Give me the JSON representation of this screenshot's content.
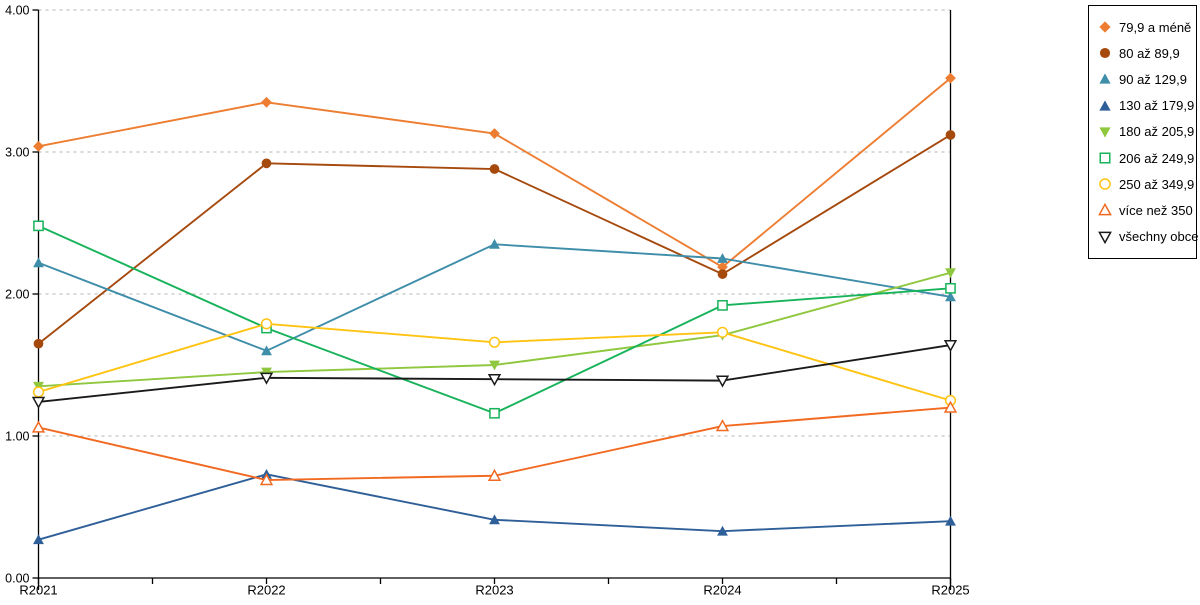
{
  "chart_data": {
    "type": "line",
    "title": "",
    "xlabel": "",
    "ylabel": "",
    "categories": [
      "R2021",
      "R2022",
      "R2023",
      "R2024",
      "R2025"
    ],
    "y_ticks": [
      "0.00",
      "1.00",
      "2.00",
      "3.00",
      "4.00"
    ],
    "ylim": [
      0,
      4
    ],
    "grid": "horizontal dotted gridlines at 1.00, 2.00, 3.00, 4.00",
    "legend_position": "outside-top-right",
    "axis_color": "#000000",
    "gridline_color": "#B3B3B3",
    "series": [
      {
        "name": "79,9 a méně",
        "color": "#ED7D31",
        "marker": "diamond",
        "fill": "filled",
        "values": [
          3.04,
          3.35,
          3.13,
          2.19,
          3.52
        ]
      },
      {
        "name": "80 až 89,9",
        "color": "#A5490D",
        "marker": "circle",
        "fill": "filled",
        "values": [
          1.65,
          2.92,
          2.88,
          2.14,
          3.12
        ]
      },
      {
        "name": "90 až 129,9",
        "color": "#3E8DA9",
        "marker": "triangle-up",
        "fill": "filled",
        "values": [
          2.22,
          1.6,
          2.35,
          2.25,
          1.98
        ]
      },
      {
        "name": "130 až 179,9",
        "color": "#2F5F98",
        "marker": "triangle-up",
        "fill": "filled",
        "values": [
          0.27,
          0.73,
          0.41,
          0.33,
          0.4
        ]
      },
      {
        "name": "180 až 205,9",
        "color": "#8FC73E",
        "marker": "triangle-down",
        "fill": "filled",
        "values": [
          1.35,
          1.45,
          1.5,
          1.71,
          2.15
        ]
      },
      {
        "name": "206 až 249,9",
        "color": "#17B35A",
        "marker": "square",
        "fill": "open",
        "values": [
          2.48,
          1.76,
          1.16,
          1.92,
          2.04
        ]
      },
      {
        "name": "250 až 349,9",
        "color": "#FFC312",
        "marker": "circle",
        "fill": "open",
        "values": [
          1.31,
          1.79,
          1.66,
          1.73,
          1.25
        ]
      },
      {
        "name": "více než 350",
        "color": "#F26A21",
        "marker": "triangle-up",
        "fill": "open",
        "values": [
          1.06,
          0.69,
          0.72,
          1.07,
          1.2
        ]
      },
      {
        "name": "všechny obce",
        "color": "#1A1A1A",
        "marker": "triangle-down",
        "fill": "open",
        "values": [
          1.24,
          1.41,
          1.4,
          1.39,
          1.64
        ]
      }
    ]
  }
}
